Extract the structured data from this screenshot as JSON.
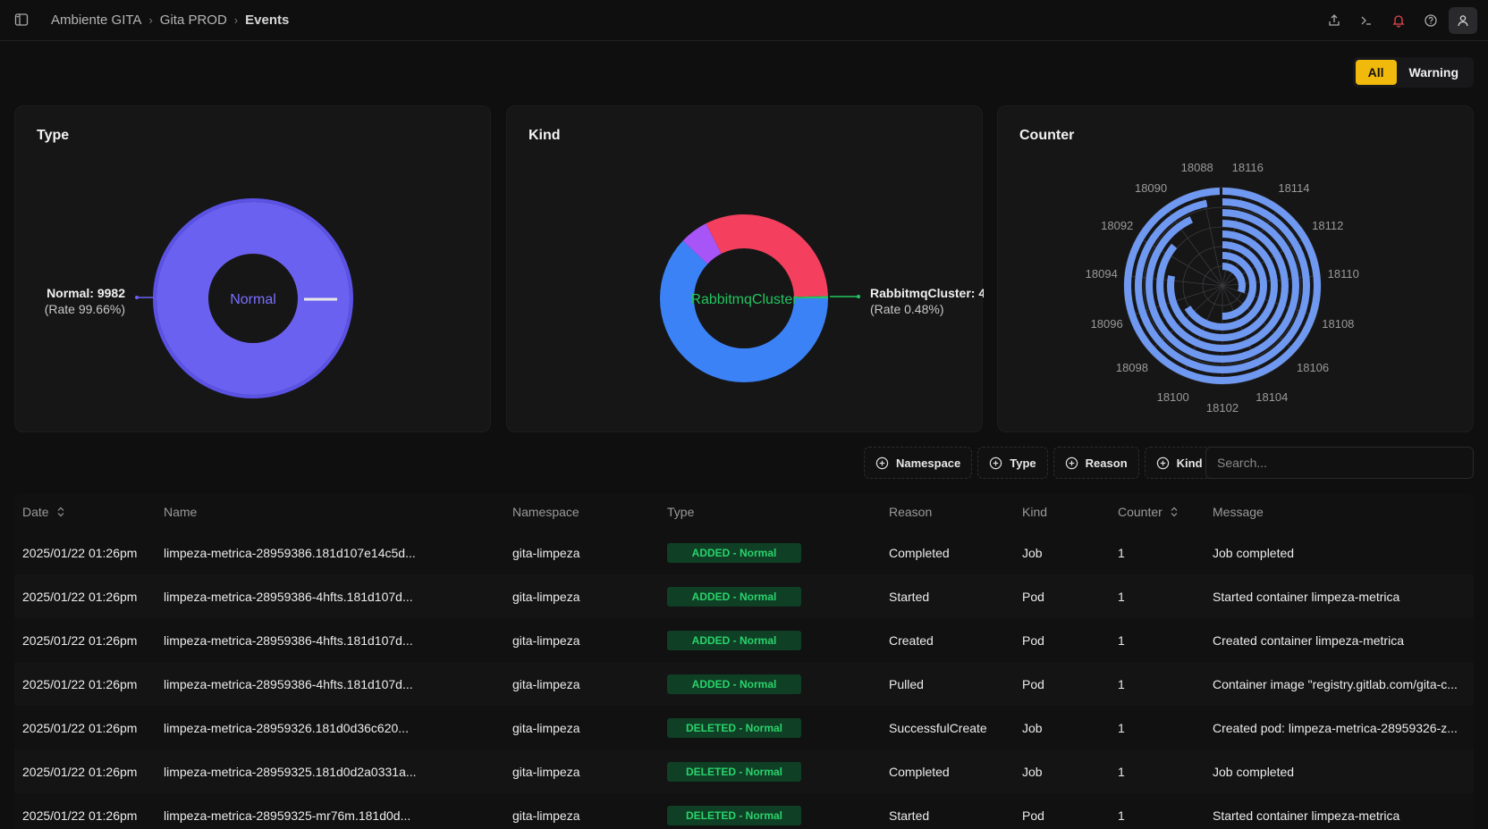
{
  "breadcrumb": {
    "root": "Ambiente GITA",
    "project": "Gita PROD",
    "page": "Events"
  },
  "filter": {
    "all": "All",
    "warning": "Warning"
  },
  "cards": {
    "type": {
      "title": "Type",
      "center_label": "Normal",
      "callout_main": "Normal: 9982",
      "callout_rate": "(Rate 99.66%)",
      "colors": {
        "main": "#6b61f0",
        "ring": "#5b52e6",
        "highlight": "#e8e8e8"
      }
    },
    "kind": {
      "title": "Kind",
      "center_label": "RabbitmqCluster",
      "callout_main": "RabbitmqCluster: 4",
      "callout_rate": "(Rate 0.48%)",
      "colors": {
        "blue": "#3b82f6",
        "red": "#f43f5e",
        "purple": "#a855f7",
        "green": "#22c55e"
      }
    },
    "counter": {
      "title": "Counter",
      "angle_labels": [
        "18088",
        "18116",
        "18114",
        "18112",
        "18110",
        "18108",
        "18106",
        "18104",
        "18102",
        "18100",
        "18098",
        "18096",
        "18094",
        "18092",
        "18090"
      ],
      "bar_color": "#6f98f0"
    }
  },
  "toolbar": {
    "namespace": "Namespace",
    "type": "Type",
    "reason": "Reason",
    "kind": "Kind",
    "search_placeholder": "Search..."
  },
  "table": {
    "headers": {
      "date": "Date",
      "name": "Name",
      "namespace": "Namespace",
      "type": "Type",
      "reason": "Reason",
      "kind": "Kind",
      "counter": "Counter",
      "message": "Message"
    },
    "rows": [
      {
        "date": "2025/01/22 01:26pm",
        "name": "limpeza-metrica-28959386.181d107e14c5d...",
        "namespace": "gita-limpeza",
        "type": "ADDED - Normal",
        "reason": "Completed",
        "kind": "Job",
        "counter": "1",
        "message": "Job completed"
      },
      {
        "date": "2025/01/22 01:26pm",
        "name": "limpeza-metrica-28959386-4hfts.181d107d...",
        "namespace": "gita-limpeza",
        "type": "ADDED - Normal",
        "reason": "Started",
        "kind": "Pod",
        "counter": "1",
        "message": "Started container limpeza-metrica"
      },
      {
        "date": "2025/01/22 01:26pm",
        "name": "limpeza-metrica-28959386-4hfts.181d107d...",
        "namespace": "gita-limpeza",
        "type": "ADDED - Normal",
        "reason": "Created",
        "kind": "Pod",
        "counter": "1",
        "message": "Created container limpeza-metrica"
      },
      {
        "date": "2025/01/22 01:26pm",
        "name": "limpeza-metrica-28959386-4hfts.181d107d...",
        "namespace": "gita-limpeza",
        "type": "ADDED - Normal",
        "reason": "Pulled",
        "kind": "Pod",
        "counter": "1",
        "message": "Container image \"registry.gitlab.com/gita-c..."
      },
      {
        "date": "2025/01/22 01:26pm",
        "name": "limpeza-metrica-28959326.181d0d36c620...",
        "namespace": "gita-limpeza",
        "type": "DELETED - Normal",
        "reason": "SuccessfulCreate",
        "kind": "Job",
        "counter": "1",
        "message": "Created pod: limpeza-metrica-28959326-z..."
      },
      {
        "date": "2025/01/22 01:26pm",
        "name": "limpeza-metrica-28959325.181d0d2a0331a...",
        "namespace": "gita-limpeza",
        "type": "DELETED - Normal",
        "reason": "Completed",
        "kind": "Job",
        "counter": "1",
        "message": "Job completed"
      },
      {
        "date": "2025/01/22 01:26pm",
        "name": "limpeza-metrica-28959325-mr76m.181d0d...",
        "namespace": "gita-limpeza",
        "type": "DELETED - Normal",
        "reason": "Started",
        "kind": "Pod",
        "counter": "1",
        "message": "Started container limpeza-metrica"
      }
    ]
  }
}
